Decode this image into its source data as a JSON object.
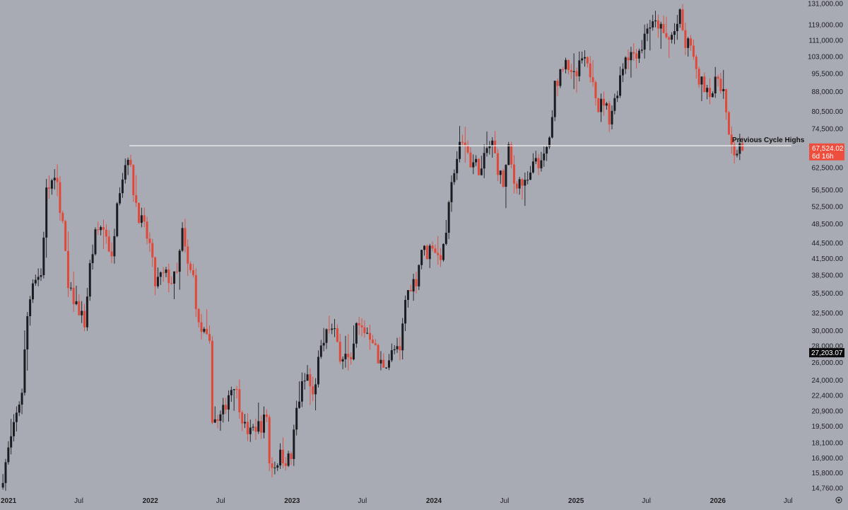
{
  "colors": {
    "background": "#a8abb3",
    "up_candle": "#1b1c21",
    "down_candle": "#e0483a",
    "resistance_line": "#f2f2f2",
    "price_badge_bg": "#ee4e3d",
    "price_badge_text": "#ffffff",
    "marker_badge_bg": "#0b0b0e",
    "marker_badge_text": "#ffffff",
    "axis_text": "#1e1e22"
  },
  "chart_data": {
    "type": "candlestick",
    "series_name": "",
    "y_scale": "log",
    "ylim": [
      14300,
      133000
    ],
    "xlim": [
      "2020-12-10",
      "2026-08-15"
    ],
    "grid": false,
    "y_ticks": [
      131000,
      119000,
      111000,
      103000,
      95500,
      88000,
      80500,
      74500,
      62500,
      56500,
      52500,
      48500,
      44500,
      41500,
      38500,
      35500,
      32500,
      30000,
      28000,
      26000,
      24000,
      22400,
      20900,
      19500,
      18100,
      16900,
      15800,
      14760
    ],
    "y_tick_labels": [
      "131,000.00",
      "119,000.00",
      "111,000.00",
      "103,000.00",
      "95,500.00",
      "88,000.00",
      "80,500.00",
      "74,500.00",
      "62,500.00",
      "56,500.00",
      "52,500.00",
      "48,500.00",
      "44,500.00",
      "41,500.00",
      "38,500.00",
      "35,500.00",
      "32,500.00",
      "30,000.00",
      "28,000.00",
      "26,000.00",
      "24,000.00",
      "22,400.00",
      "20,900.00",
      "19,500.00",
      "18,100.00",
      "16,900.00",
      "15,800.00",
      "14,760.00"
    ],
    "x_ticks": [
      {
        "date": "2021-01-01",
        "label": "2021",
        "year": true
      },
      {
        "date": "2021-07-01",
        "label": "Jul",
        "year": false
      },
      {
        "date": "2022-01-01",
        "label": "2022",
        "year": true
      },
      {
        "date": "2022-07-01",
        "label": "Jul",
        "year": false
      },
      {
        "date": "2023-01-01",
        "label": "2023",
        "year": true
      },
      {
        "date": "2023-07-01",
        "label": "Jul",
        "year": false
      },
      {
        "date": "2024-01-01",
        "label": "2024",
        "year": true
      },
      {
        "date": "2024-07-01",
        "label": "Jul",
        "year": false
      },
      {
        "date": "2025-01-01",
        "label": "2025",
        "year": true
      },
      {
        "date": "2025-07-01",
        "label": "Jul",
        "year": false
      },
      {
        "date": "2026-01-01",
        "label": "2026",
        "year": true
      },
      {
        "date": "2026-07-01",
        "label": "Jul",
        "year": false
      }
    ],
    "price_path": [
      [
        "2020-12-14",
        14800
      ],
      [
        "2021-01-04",
        17500
      ],
      [
        "2021-01-18",
        19300
      ],
      [
        "2021-02-08",
        23000
      ],
      [
        "2021-02-22",
        32000
      ],
      [
        "2021-03-08",
        38000
      ],
      [
        "2021-03-29",
        38500
      ],
      [
        "2021-04-12",
        56000
      ],
      [
        "2021-04-26",
        58500
      ],
      [
        "2021-05-10",
        57500
      ],
      [
        "2021-05-24",
        48500
      ],
      [
        "2021-06-07",
        36000
      ],
      [
        "2021-06-21",
        34500
      ],
      [
        "2021-07-05",
        33000
      ],
      [
        "2021-07-19",
        31000
      ],
      [
        "2021-08-02",
        40000
      ],
      [
        "2021-08-16",
        46000
      ],
      [
        "2021-08-30",
        48000
      ],
      [
        "2021-09-13",
        46500
      ],
      [
        "2021-09-27",
        41000
      ],
      [
        "2021-10-11",
        55000
      ],
      [
        "2021-10-25",
        60500
      ],
      [
        "2021-11-08",
        66800
      ],
      [
        "2021-11-22",
        56500
      ],
      [
        "2021-12-06",
        50500
      ],
      [
        "2021-12-20",
        47500
      ],
      [
        "2022-01-03",
        44000
      ],
      [
        "2022-01-17",
        37000
      ],
      [
        "2022-01-31",
        38200
      ],
      [
        "2022-02-14",
        38500
      ],
      [
        "2022-02-28",
        37500
      ],
      [
        "2022-03-14",
        38600
      ],
      [
        "2022-03-28",
        46600
      ],
      [
        "2022-04-11",
        40000
      ],
      [
        "2022-04-25",
        38200
      ],
      [
        "2022-05-09",
        30500
      ],
      [
        "2022-05-23",
        29500
      ],
      [
        "2022-06-06",
        27800
      ],
      [
        "2022-06-13",
        20500
      ],
      [
        "2022-06-27",
        19800
      ],
      [
        "2022-07-11",
        20800
      ],
      [
        "2022-07-25",
        22600
      ],
      [
        "2022-08-08",
        23800
      ],
      [
        "2022-08-22",
        21500
      ],
      [
        "2022-09-05",
        19400
      ],
      [
        "2022-09-19",
        18900
      ],
      [
        "2022-10-03",
        19500
      ],
      [
        "2022-10-17",
        19600
      ],
      [
        "2022-10-31",
        20500
      ],
      [
        "2022-11-07",
        16500
      ],
      [
        "2022-11-21",
        16400
      ],
      [
        "2022-12-05",
        17100
      ],
      [
        "2022-12-19",
        16800
      ],
      [
        "2023-01-02",
        16900
      ],
      [
        "2023-01-16",
        21000
      ],
      [
        "2023-01-30",
        23300
      ],
      [
        "2023-02-13",
        24500
      ],
      [
        "2023-02-27",
        22200
      ],
      [
        "2023-03-13",
        26000
      ],
      [
        "2023-03-27",
        28500
      ],
      [
        "2023-04-10",
        30500
      ],
      [
        "2023-04-24",
        29500
      ],
      [
        "2023-05-08",
        27000
      ],
      [
        "2023-05-22",
        26800
      ],
      [
        "2023-06-05",
        25500
      ],
      [
        "2023-06-19",
        30500
      ],
      [
        "2023-07-03",
        30200
      ],
      [
        "2023-07-17",
        29800
      ],
      [
        "2023-07-31",
        29100
      ],
      [
        "2023-08-14",
        26000
      ],
      [
        "2023-08-28",
        25800
      ],
      [
        "2023-09-11",
        26500
      ],
      [
        "2023-09-25",
        27500
      ],
      [
        "2023-10-09",
        27000
      ],
      [
        "2023-10-23",
        34500
      ],
      [
        "2023-11-06",
        37000
      ],
      [
        "2023-11-20",
        37800
      ],
      [
        "2023-12-04",
        43500
      ],
      [
        "2023-12-18",
        42500
      ],
      [
        "2024-01-01",
        44500
      ],
      [
        "2024-01-15",
        41800
      ],
      [
        "2024-01-29",
        43000
      ],
      [
        "2024-02-12",
        51800
      ],
      [
        "2024-02-26",
        62500
      ],
      [
        "2024-03-11",
        68500
      ],
      [
        "2024-03-25",
        69800
      ],
      [
        "2024-04-08",
        64000
      ],
      [
        "2024-04-22",
        63500
      ],
      [
        "2024-05-06",
        61500
      ],
      [
        "2024-05-20",
        68000
      ],
      [
        "2024-06-03",
        69500
      ],
      [
        "2024-06-17",
        62500
      ],
      [
        "2024-07-01",
        58000
      ],
      [
        "2024-07-15",
        67500
      ],
      [
        "2024-07-29",
        58500
      ],
      [
        "2024-08-12",
        59000
      ],
      [
        "2024-08-26",
        57500
      ],
      [
        "2024-09-09",
        60000
      ],
      [
        "2024-09-23",
        65500
      ],
      [
        "2024-10-07",
        62800
      ],
      [
        "2024-10-21",
        68200
      ],
      [
        "2024-11-04",
        76500
      ],
      [
        "2024-11-11",
        90500
      ],
      [
        "2024-11-25",
        96500
      ],
      [
        "2024-12-09",
        104000
      ],
      [
        "2024-12-23",
        93500
      ],
      [
        "2025-01-06",
        94500
      ],
      [
        "2025-01-20",
        102000
      ],
      [
        "2025-02-03",
        97500
      ],
      [
        "2025-02-17",
        95000
      ],
      [
        "2025-03-03",
        82000
      ],
      [
        "2025-03-17",
        84500
      ],
      [
        "2025-03-31",
        78500
      ],
      [
        "2025-04-14",
        84500
      ],
      [
        "2025-04-28",
        94500
      ],
      [
        "2025-05-12",
        104000
      ],
      [
        "2025-05-26",
        104500
      ],
      [
        "2025-06-09",
        105500
      ],
      [
        "2025-06-23",
        108000
      ],
      [
        "2025-07-07",
        119000
      ],
      [
        "2025-07-21",
        118000
      ],
      [
        "2025-08-04",
        119500
      ],
      [
        "2025-08-18",
        113000
      ],
      [
        "2025-09-01",
        111000
      ],
      [
        "2025-09-15",
        115500
      ],
      [
        "2025-09-29",
        123500
      ],
      [
        "2025-10-13",
        108000
      ],
      [
        "2025-10-27",
        110000
      ],
      [
        "2025-11-10",
        94500
      ],
      [
        "2025-11-24",
        91500
      ],
      [
        "2025-12-08",
        90000
      ],
      [
        "2025-12-22",
        88000
      ],
      [
        "2026-01-05",
        94000
      ],
      [
        "2026-01-19",
        88500
      ],
      [
        "2026-02-02",
        70500
      ],
      [
        "2026-02-16",
        67000
      ],
      [
        "2026-03-02",
        67524
      ]
    ],
    "resistance": {
      "label": "Previous Cycle Highs",
      "value": 69000,
      "from": "2021-11-08",
      "to": "2026-07-10"
    },
    "last_price": {
      "value": 67524.02,
      "label": "67,524.02",
      "countdown": "6d 16h"
    },
    "marker": {
      "value": 27203.07,
      "label": "27,203.07"
    }
  },
  "settings_icon": "gear-icon"
}
